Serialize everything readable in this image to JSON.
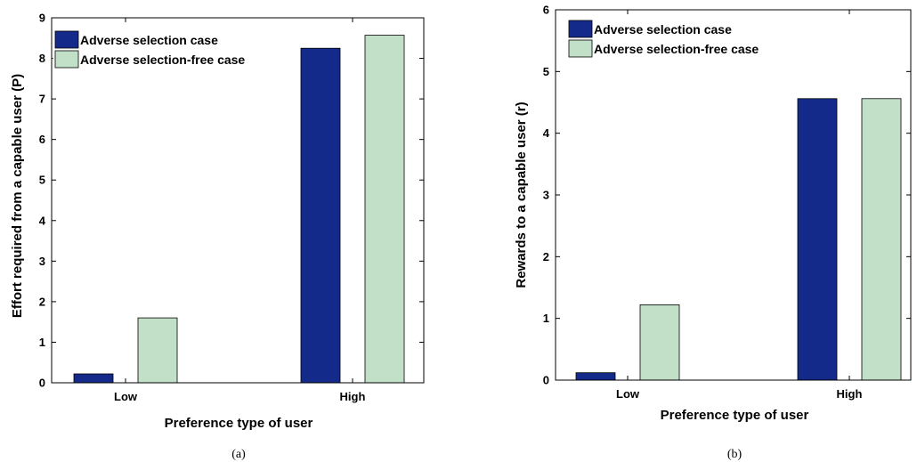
{
  "colors": {
    "adverse": "#142a8a",
    "free": "#c2e0c8",
    "axis": "#000000"
  },
  "chart_data": [
    {
      "type": "bar",
      "caption": "(a)",
      "categories": [
        "Low",
        "High"
      ],
      "series": [
        {
          "name": "Adverse selection case",
          "values": [
            0.22,
            8.25
          ]
        },
        {
          "name": "Adverse selection-free case",
          "values": [
            1.6,
            8.57
          ]
        }
      ],
      "xlabel": "Preference type of user",
      "ylabel": "Effort required from a capable user (P)",
      "ylim": [
        0,
        9
      ],
      "yticks": [
        "0",
        "1",
        "2",
        "3",
        "4",
        "5",
        "6",
        "7",
        "8",
        "9"
      ],
      "legend": "top-left",
      "grid": false
    },
    {
      "type": "bar",
      "caption": "(b)",
      "categories": [
        "Low",
        "High"
      ],
      "series": [
        {
          "name": "Adverse selection case",
          "values": [
            0.12,
            4.56
          ]
        },
        {
          "name": "Adverse selection-free case",
          "values": [
            1.22,
            4.56
          ]
        }
      ],
      "xlabel": "Preference type of user",
      "ylabel": "Rewards to a capable user (r)",
      "ylim": [
        0,
        6
      ],
      "yticks": [
        "0",
        "1",
        "2",
        "3",
        "4",
        "5",
        "6"
      ],
      "legend": "top-left",
      "grid": false
    }
  ]
}
